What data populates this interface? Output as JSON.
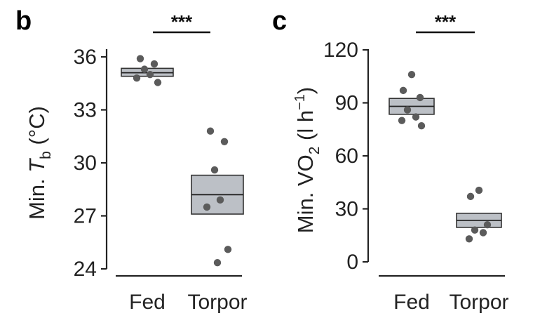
{
  "chart_data": [
    {
      "panel_label": "b",
      "type": "scatter",
      "categories": [
        "Fed",
        "Torpor"
      ],
      "ylabel_prefix": "Min. ",
      "ylabel_var": "T",
      "ylabel_sub": "b",
      "ylabel_suffix": " (°C)",
      "ylim": [
        24,
        36
      ],
      "yticks": [
        24,
        27,
        30,
        33,
        36
      ],
      "significance": "***",
      "boxes": [
        {
          "category": "Fed",
          "low": 34.9,
          "mean": 35.1,
          "high": 35.35
        },
        {
          "category": "Torpor",
          "low": 27.1,
          "mean": 28.2,
          "high": 29.3
        }
      ],
      "points": [
        {
          "category": "Fed",
          "values": [
            35.9,
            35.6,
            35.3,
            35.0,
            34.8,
            34.55
          ]
        },
        {
          "category": "Torpor",
          "values": [
            31.8,
            31.2,
            29.6,
            27.9,
            27.5,
            25.1,
            24.35
          ]
        }
      ]
    },
    {
      "panel_label": "c",
      "type": "scatter",
      "categories": [
        "Fed",
        "Torpor"
      ],
      "ylabel_prefix": "Min. VO",
      "ylabel_sub": "2",
      "ylabel_mid": " (l h",
      "ylabel_sup": "−1",
      "ylabel_suffix": ")",
      "ylim": [
        0,
        120
      ],
      "yticks": [
        0,
        30,
        60,
        90,
        120
      ],
      "significance": "***",
      "boxes": [
        {
          "category": "Fed",
          "low": 83.5,
          "mean": 88,
          "high": 92.5
        },
        {
          "category": "Torpor",
          "low": 19.5,
          "mean": 23.5,
          "high": 27.5
        }
      ],
      "points": [
        {
          "category": "Fed",
          "values": [
            106,
            97,
            93,
            86,
            82,
            80,
            77
          ]
        },
        {
          "category": "Torpor",
          "values": [
            40.5,
            37,
            21,
            18,
            16.5,
            13
          ]
        }
      ]
    }
  ]
}
